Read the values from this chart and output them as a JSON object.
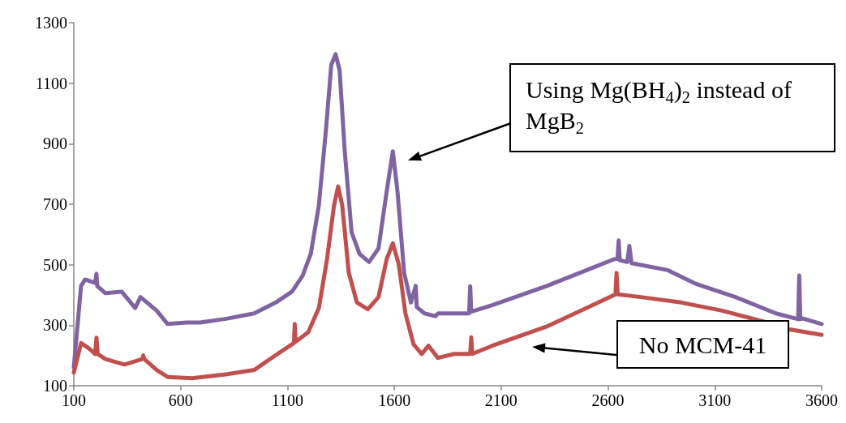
{
  "chart_data": {
    "type": "line",
    "xlim": [
      100,
      3600
    ],
    "xticks": [
      100,
      600,
      1100,
      1600,
      2100,
      2600,
      3100,
      3600
    ],
    "ylim": [
      100,
      1300
    ],
    "yticks": [
      100,
      300,
      500,
      700,
      900,
      1100,
      1300
    ],
    "grid": false,
    "marker": "none",
    "line_style": "solid",
    "annotations": [
      "Using Mg(BH$_{4}$)$_{2}$ instead of MgB$_{2}$",
      "No MCM-41"
    ],
    "series": [
      {
        "color": "#8064a2",
        "x": [
          100,
          134,
          153,
          200,
          206,
          210,
          248,
          324,
          387,
          412,
          488,
          539,
          628,
          691,
          818,
          944,
          1045,
          1121,
          1171,
          1209,
          1247,
          1280,
          1305,
          1325,
          1344,
          1368,
          1400,
          1437,
          1482,
          1526,
          1564,
          1593,
          1615,
          1646,
          1678,
          1700,
          1705,
          1741,
          1792,
          1805,
          1880,
          1950,
          1955,
          1960,
          2058,
          2311,
          2500,
          2627,
          2645,
          2650,
          2655,
          2690,
          2700,
          2710,
          2880,
          3007,
          3197,
          3386,
          3490,
          3495,
          3500,
          3513,
          3600
        ],
        "values": [
          161,
          430,
          451,
          440,
          470,
          429,
          406,
          411,
          357,
          393,
          348,
          304,
          309,
          309,
          322,
          339,
          375,
          411,
          464,
          536,
          697,
          946,
          1161,
          1196,
          1143,
          875,
          607,
          536,
          509,
          554,
          741,
          875,
          741,
          473,
          375,
          430,
          360,
          339,
          330,
          339,
          339,
          339,
          429,
          345,
          366,
          429,
          482,
          518,
          520,
          580,
          515,
          509,
          562,
          505,
          482,
          438,
          393,
          339,
          320,
          464,
          320,
          322,
          304
        ]
      },
      {
        "color": "#c0504d",
        "x": [
          100,
          134,
          172,
          200,
          206,
          212,
          248,
          337,
          420,
          425,
          430,
          488,
          539,
          653,
          818,
          944,
          1045,
          1130,
          1134,
          1138,
          1197,
          1247,
          1285,
          1318,
          1337,
          1356,
          1387,
          1425,
          1476,
          1526,
          1564,
          1593,
          1621,
          1652,
          1690,
          1728,
          1760,
          1804,
          1880,
          1955,
          1960,
          1965,
          2058,
          2311,
          2500,
          2635,
          2640,
          2645,
          2754,
          2943,
          3134,
          3323,
          3450,
          3600
        ],
        "values": [
          143,
          241,
          223,
          205,
          259,
          205,
          188,
          170,
          188,
          200,
          188,
          152,
          129,
          125,
          138,
          152,
          201,
          241,
          304,
          245,
          277,
          357,
          518,
          697,
          759,
          697,
          473,
          375,
          353,
          393,
          518,
          571,
          500,
          339,
          237,
          205,
          232,
          192,
          205,
          205,
          260,
          205,
          232,
          295,
          357,
          402,
          473,
          402,
          393,
          375,
          348,
          313,
          286,
          268
        ]
      }
    ]
  }
}
